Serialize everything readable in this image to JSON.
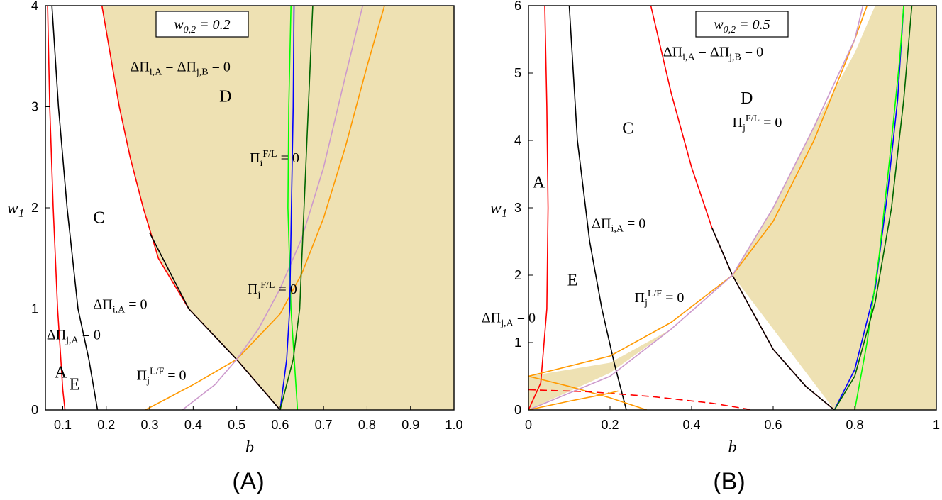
{
  "chart_data": [
    {
      "type": "line",
      "panel": "A",
      "caption": "(A)",
      "xlabel": "b",
      "ylabel": "w_1",
      "xlim": [
        0.06,
        1.0
      ],
      "ylim": [
        0,
        4
      ],
      "xticks": [
        0.1,
        0.2,
        0.3,
        0.4,
        0.5,
        0.6,
        0.7,
        0.8,
        0.9,
        1.0
      ],
      "xtick_labels": [
        "0.1",
        "0.2",
        "0.3",
        "0.4",
        "0.5",
        "0.6",
        "0.7",
        "0.8",
        "0.9",
        "1.0"
      ],
      "yticks": [
        0,
        1,
        2,
        3,
        4
      ],
      "ytick_labels": [
        "0",
        "1",
        "2",
        "3",
        "4"
      ],
      "parameter_box": "w_{0,2} = 0.2",
      "shaded_region": {
        "color": "#eee1b3",
        "boundary": [
          [
            1.0,
            0
          ],
          [
            0.6,
            0
          ],
          [
            0.5,
            0.5
          ],
          [
            0.39,
            1.0
          ],
          [
            0.32,
            1.5
          ],
          [
            0.285,
            2.0
          ],
          [
            0.255,
            2.5
          ],
          [
            0.23,
            3.0
          ],
          [
            0.21,
            3.5
          ],
          [
            0.19,
            4.0
          ],
          [
            1.0,
            4.0
          ]
        ]
      },
      "series": [
        {
          "name": "ΔΠ_{j,A} = 0",
          "color": "#ff0000",
          "style": "solid",
          "points": [
            [
              0.065,
              4.0
            ],
            [
              0.07,
              3.0
            ],
            [
              0.078,
              2.0
            ],
            [
              0.088,
              1.0
            ],
            [
              0.1,
              0.2
            ],
            [
              0.105,
              0
            ]
          ]
        },
        {
          "name": "ΔΠ_{i,A} = 0",
          "color": "#000000",
          "style": "solid",
          "points": [
            [
              0.075,
              4.0
            ],
            [
              0.09,
              3.0
            ],
            [
              0.11,
              2.0
            ],
            [
              0.135,
              1.0
            ],
            [
              0.16,
              0.5
            ],
            [
              0.18,
              0
            ]
          ]
        },
        {
          "name": "ΔΠ_{i,A} = ΔΠ_{j,B} = 0",
          "color": "#ff0000",
          "style": "solid",
          "points": [
            [
              0.19,
              4.0
            ],
            [
              0.21,
              3.5
            ],
            [
              0.23,
              3.0
            ],
            [
              0.255,
              2.5
            ],
            [
              0.285,
              2.0
            ],
            [
              0.32,
              1.5
            ],
            [
              0.39,
              1.0
            ],
            [
              0.5,
              0.5
            ],
            [
              0.6,
              0
            ]
          ]
        },
        {
          "name": "ΔΠ_{i,A} = ΔΠ_{j,B} = 0 (overlay)",
          "color": "#000000",
          "style": "solid",
          "points": [
            [
              0.3,
              1.75
            ],
            [
              0.39,
              1.0
            ],
            [
              0.5,
              0.5
            ],
            [
              0.6,
              0
            ]
          ]
        },
        {
          "name": "Π_j^{L/F} = 0",
          "color": "#ff9900",
          "style": "solid",
          "points": [
            [
              0.29,
              0
            ],
            [
              0.4,
              0.25
            ],
            [
              0.5,
              0.5
            ],
            [
              0.6,
              0.95
            ],
            [
              0.65,
              1.35
            ],
            [
              0.7,
              1.9
            ],
            [
              0.75,
              2.6
            ],
            [
              0.8,
              3.4
            ],
            [
              0.84,
              4.0
            ]
          ]
        },
        {
          "name": "Π_j^{F/L} = 0",
          "color": "#cc99cc",
          "style": "solid",
          "points": [
            [
              0.375,
              0
            ],
            [
              0.45,
              0.25
            ],
            [
              0.5,
              0.5
            ],
            [
              0.55,
              0.8
            ],
            [
              0.6,
              1.2
            ],
            [
              0.65,
              1.7
            ],
            [
              0.7,
              2.4
            ],
            [
              0.75,
              3.3
            ],
            [
              0.79,
              4.0
            ]
          ]
        },
        {
          "name": "Π_i^{F/L} = 0",
          "color": "#00ff00",
          "style": "solid",
          "points": [
            [
              0.625,
              4.0
            ],
            [
              0.62,
              3.0
            ],
            [
              0.618,
              2.0
            ],
            [
              0.625,
              1.0
            ],
            [
              0.64,
              0
            ]
          ]
        },
        {
          "name": "blue curve",
          "color": "#0000ff",
          "style": "solid",
          "points": [
            [
              0.6,
              0
            ],
            [
              0.615,
              0.5
            ],
            [
              0.622,
              1.0
            ],
            [
              0.626,
              2.0
            ],
            [
              0.63,
              3.0
            ],
            [
              0.632,
              4.0
            ]
          ]
        },
        {
          "name": "dark green curve",
          "color": "#006600",
          "style": "solid",
          "points": [
            [
              0.6,
              0
            ],
            [
              0.63,
              0.5
            ],
            [
              0.645,
              1.0
            ],
            [
              0.655,
              2.0
            ],
            [
              0.665,
              3.0
            ],
            [
              0.675,
              4.0
            ]
          ]
        }
      ],
      "annotations": [
        {
          "text": "ΔΠ_{i,A} = ΔΠ_{j,B} = 0",
          "x": 0.255,
          "y": 3.35
        },
        {
          "text": "D",
          "x": 0.46,
          "y": 3.05
        },
        {
          "text": "Π_i^{F/L} = 0",
          "x": 0.53,
          "y": 2.45
        },
        {
          "text": "C",
          "x": 0.17,
          "y": 1.85
        },
        {
          "text": "Π_j^{F/L} = 0",
          "x": 0.525,
          "y": 1.15
        },
        {
          "text": "ΔΠ_{i,A} = 0",
          "x": 0.17,
          "y": 1.0
        },
        {
          "text": "ΔΠ_{j,A} = 0",
          "x": 0.063,
          "y": 0.7
        },
        {
          "text": "Π_j^{L/F} = 0",
          "x": 0.27,
          "y": 0.3
        },
        {
          "text": "A",
          "x": 0.081,
          "y": 0.32
        },
        {
          "text": "E",
          "x": 0.115,
          "y": 0.2
        }
      ]
    },
    {
      "type": "line",
      "panel": "B",
      "caption": "(B)",
      "xlabel": "b",
      "ylabel": "w_1",
      "xlim": [
        0,
        1
      ],
      "ylim": [
        0,
        6
      ],
      "xticks": [
        0,
        0.2,
        0.4,
        0.6,
        0.8,
        1
      ],
      "xtick_labels": [
        "0",
        "0.2",
        "0.4",
        "0.6",
        "0.8",
        "1"
      ],
      "yticks": [
        0,
        1,
        2,
        3,
        4,
        5,
        6
      ],
      "ytick_labels": [
        "0",
        "1",
        "2",
        "3",
        "4",
        "5",
        "6"
      ],
      "parameter_box": "w_{0,2} = 0.5",
      "shaded_region": {
        "color": "#eee1b3",
        "boundary": [
          [
            0,
            0.5
          ],
          [
            0.2,
            0.7
          ],
          [
            0.35,
            1.2
          ],
          [
            0.5,
            2.0
          ],
          [
            0.6,
            3.0
          ],
          [
            0.7,
            4.2
          ],
          [
            0.8,
            5.3
          ],
          [
            0.85,
            6.0
          ],
          [
            1,
            6.0
          ],
          [
            1,
            0
          ],
          [
            0.75,
            0
          ],
          [
            0.5,
            2.0
          ],
          [
            0.35,
            1.2
          ],
          [
            0.2,
            0.55
          ],
          [
            0,
            0
          ]
        ]
      },
      "series": [
        {
          "name": "ΔΠ_{j,A} = 0",
          "color": "#ff0000",
          "style": "solid",
          "points": [
            [
              0,
              0
            ],
            [
              0.03,
              0.4
            ],
            [
              0.045,
              1.5
            ],
            [
              0.048,
              3.0
            ],
            [
              0.045,
              4.5
            ],
            [
              0.04,
              6.0
            ]
          ]
        },
        {
          "name": "ΔΠ_{i,A} = 0",
          "color": "#000000",
          "style": "solid",
          "points": [
            [
              0.1,
              6.0
            ],
            [
              0.12,
              4.0
            ],
            [
              0.15,
              2.5
            ],
            [
              0.18,
              1.5
            ],
            [
              0.21,
              0.7
            ],
            [
              0.24,
              0
            ]
          ]
        },
        {
          "name": "ΔΠ_{i,A} = ΔΠ_{j,B} = 0",
          "color": "#ff0000",
          "style": "solid",
          "points": [
            [
              0.3,
              6.0
            ],
            [
              0.35,
              4.7
            ],
            [
              0.4,
              3.6
            ],
            [
              0.45,
              2.7
            ],
            [
              0.5,
              2.0
            ],
            [
              0.6,
              0.9
            ],
            [
              0.68,
              0.35
            ],
            [
              0.75,
              0
            ]
          ]
        },
        {
          "name": "ΔΠ_{i,A} = ΔΠ_{j,B} = 0 (overlay)",
          "color": "#000000",
          "style": "solid",
          "points": [
            [
              0.45,
              2.7
            ],
            [
              0.5,
              2.0
            ],
            [
              0.6,
              0.9
            ],
            [
              0.68,
              0.35
            ],
            [
              0.75,
              0
            ]
          ]
        },
        {
          "name": "Π_j^{L/F} = 0",
          "color": "#ff9900",
          "style": "solid",
          "points": [
            [
              0,
              0.5
            ],
            [
              0.2,
              0.8
            ],
            [
              0.35,
              1.3
            ],
            [
              0.5,
              2.0
            ],
            [
              0.6,
              2.8
            ],
            [
              0.7,
              4.0
            ],
            [
              0.8,
              5.5
            ],
            [
              0.83,
              6.0
            ]
          ]
        },
        {
          "name": "Π_j^{F/L} = 0",
          "color": "#cc99cc",
          "style": "solid",
          "points": [
            [
              0,
              0
            ],
            [
              0.2,
              0.5
            ],
            [
              0.35,
              1.2
            ],
            [
              0.5,
              2.0
            ],
            [
              0.6,
              3.0
            ],
            [
              0.7,
              4.2
            ],
            [
              0.8,
              5.5
            ],
            [
              0.82,
              6.0
            ]
          ]
        },
        {
          "name": "orange low",
          "color": "#ff9900",
          "style": "solid",
          "points": [
            [
              0,
              0.5
            ],
            [
              0.1,
              0.35
            ],
            [
              0.2,
              0.18
            ],
            [
              0.29,
              0
            ]
          ]
        },
        {
          "name": "dashed red",
          "color": "#ff0000",
          "style": "dashed",
          "points": [
            [
              0,
              0.3
            ],
            [
              0.15,
              0.27
            ],
            [
              0.3,
              0.2
            ],
            [
              0.45,
              0.1
            ],
            [
              0.55,
              0
            ]
          ]
        },
        {
          "name": "orange diagonal",
          "color": "#ff9900",
          "style": "solid",
          "points": [
            [
              0,
              0
            ],
            [
              0.1,
              0.13
            ],
            [
              0.2,
              0.25
            ],
            [
              0.22,
              0.28
            ]
          ]
        },
        {
          "name": "blue curve",
          "color": "#0000ff",
          "style": "solid",
          "points": [
            [
              0.75,
              0
            ],
            [
              0.8,
              0.6
            ],
            [
              0.85,
              1.8
            ],
            [
              0.88,
              3.2
            ],
            [
              0.905,
              4.6
            ],
            [
              0.92,
              6.0
            ]
          ]
        },
        {
          "name": "green curve",
          "color": "#00ff00",
          "style": "solid",
          "points": [
            [
              0.8,
              0
            ],
            [
              0.83,
              1.0
            ],
            [
              0.86,
              2.3
            ],
            [
              0.885,
              3.7
            ],
            [
              0.91,
              5.2
            ],
            [
              0.92,
              6.0
            ]
          ]
        },
        {
          "name": "dark green curve",
          "color": "#006600",
          "style": "solid",
          "points": [
            [
              0.75,
              0
            ],
            [
              0.8,
              0.5
            ],
            [
              0.85,
              1.6
            ],
            [
              0.89,
              3.0
            ],
            [
              0.92,
              4.6
            ],
            [
              0.94,
              6.0
            ]
          ]
        }
      ],
      "annotations": [
        {
          "text": "ΔΠ_{i,A} = ΔΠ_{j,B} = 0",
          "x": 0.33,
          "y": 5.25
        },
        {
          "text": "D",
          "x": 0.52,
          "y": 4.55
        },
        {
          "text": "Π_j^{F/L} = 0",
          "x": 0.5,
          "y": 4.2
        },
        {
          "text": "C",
          "x": 0.23,
          "y": 4.1
        },
        {
          "text": "A",
          "x": 0.01,
          "y": 3.3
        },
        {
          "text": "ΔΠ_{i,A} = 0",
          "x": 0.155,
          "y": 2.7
        },
        {
          "text": "E",
          "x": 0.095,
          "y": 1.85
        },
        {
          "text": "Π_j^{L/F} = 0",
          "x": 0.26,
          "y": 1.6
        },
        {
          "text": "ΔΠ_{j,A} = 0",
          "x": -0.115,
          "y": 1.3
        }
      ]
    }
  ]
}
